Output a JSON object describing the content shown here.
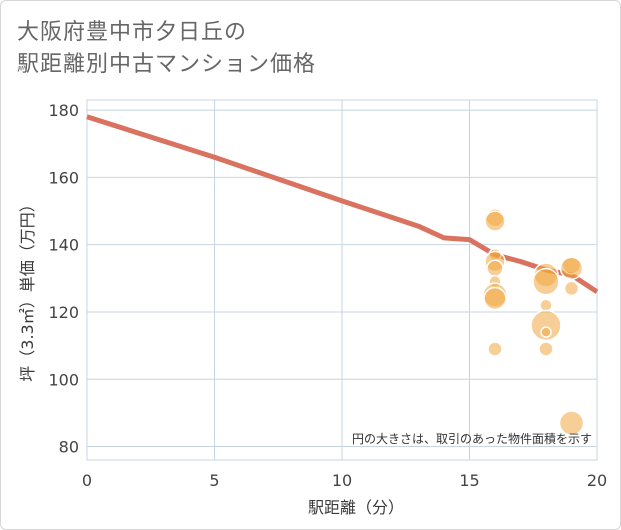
{
  "title": {
    "line1": "大阪府豊中市夕日丘の",
    "line2": "駅距離別中古マンション価格"
  },
  "chart_data": {
    "type": "scatter",
    "title": "大阪府豊中市夕日丘の駅距離別中古マンション価格",
    "xlabel": "駅距離（分）",
    "ylabel": "坪（3.3㎡）単価（万円）",
    "xlim": [
      0,
      20
    ],
    "ylim": [
      76,
      183
    ],
    "xticks": [
      0,
      5,
      10,
      15,
      20
    ],
    "yticks": [
      80,
      100,
      120,
      140,
      160,
      180
    ],
    "grid": true,
    "note": "円の大きさは、取引のあった物件面積を示す",
    "colors": {
      "trend": "#d9725f",
      "bubble": "#f0a840",
      "grid": "#c8d4e0"
    },
    "trend_line": {
      "name": "trend",
      "x": [
        0,
        5,
        10,
        13,
        14,
        15,
        16,
        17,
        18,
        19,
        20
      ],
      "y": [
        178,
        166,
        153,
        145.5,
        142,
        141.5,
        137,
        135,
        132.5,
        131,
        126
      ]
    },
    "points": [
      {
        "x": 16,
        "y": 148,
        "size": 9
      },
      {
        "x": 16,
        "y": 147,
        "size": 10
      },
      {
        "x": 16,
        "y": 137,
        "size": 6
      },
      {
        "x": 16,
        "y": 135,
        "size": 10
      },
      {
        "x": 16,
        "y": 133,
        "size": 8
      },
      {
        "x": 16,
        "y": 129,
        "size": 6
      },
      {
        "x": 16,
        "y": 125,
        "size": 12
      },
      {
        "x": 16,
        "y": 124,
        "size": 11
      },
      {
        "x": 16,
        "y": 109,
        "size": 7
      },
      {
        "x": 18,
        "y": 131,
        "size": 12
      },
      {
        "x": 18,
        "y": 129,
        "size": 13
      },
      {
        "x": 18,
        "y": 122,
        "size": 6
      },
      {
        "x": 18,
        "y": 116,
        "size": 15
      },
      {
        "x": 18,
        "y": 114,
        "size": 5
      },
      {
        "x": 18,
        "y": 109,
        "size": 7
      },
      {
        "x": 19,
        "y": 134,
        "size": 9
      },
      {
        "x": 19,
        "y": 133,
        "size": 11
      },
      {
        "x": 19,
        "y": 127,
        "size": 7
      },
      {
        "x": 19,
        "y": 87,
        "size": 12
      }
    ]
  }
}
